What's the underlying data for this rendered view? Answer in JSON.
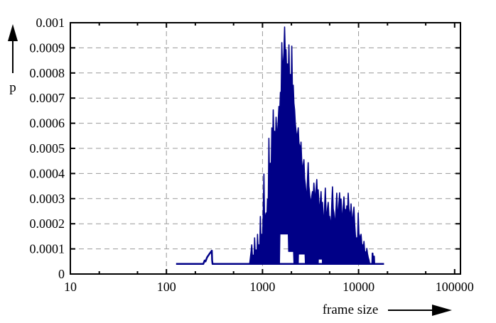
{
  "figure": {
    "background": "#ffffff",
    "border_color": "#000000",
    "grid_color": "#999999"
  },
  "chart_data": {
    "type": "line",
    "title": "",
    "xlabel": "frame size",
    "ylabel": "p",
    "x_scale": "log",
    "xlim": [
      10,
      115000
    ],
    "ylim": [
      0,
      0.001
    ],
    "x_major_ticks": [
      10,
      100,
      1000,
      10000,
      100000
    ],
    "x_major_tick_labels": [
      "10",
      "100",
      "1000",
      "10000",
      "100000"
    ],
    "x_minor_ticks": [
      20,
      50,
      200,
      500,
      2000,
      5000,
      20000,
      50000
    ],
    "y_major_ticks": [
      0,
      0.0001,
      0.0002,
      0.0003,
      0.0004,
      0.0005,
      0.0006,
      0.0007,
      0.0008,
      0.0009,
      0.001
    ],
    "y_major_tick_labels": [
      "0",
      "0.0001",
      "0.0002",
      "0.0003",
      "0.0004",
      "0.0005",
      "0.0006",
      "0.0007",
      "0.0008",
      "0.0009",
      "0.001"
    ],
    "grid": {
      "horizontal_at": [
        0.0001,
        0.0002,
        0.0003,
        0.0004,
        0.0005,
        0.0006,
        0.0007,
        0.0008,
        0.0009
      ],
      "vertical_at": [
        100,
        1000,
        10000
      ],
      "style": "dashed"
    },
    "legend": "none",
    "line_color": "#000087",
    "series": {
      "baseline": [
        [
          126,
          4e-05
        ],
        [
          242,
          4e-05
        ],
        [
          250,
          5.4e-05
        ],
        [
          255,
          5e-05
        ],
        [
          265,
          6.6e-05
        ],
        [
          278,
          7.8e-05
        ],
        [
          297,
          9.3e-05
        ],
        [
          299,
          5.5e-05
        ],
        [
          302,
          4e-05
        ],
        [
          735,
          4e-05
        ],
        [
          13060,
          4e-05
        ],
        [
          13900,
          4e-05
        ],
        [
          13990,
          8.2e-05
        ],
        [
          14080,
          4e-05
        ],
        [
          14400,
          4e-05
        ],
        [
          14480,
          7e-05
        ],
        [
          14560,
          4e-05
        ],
        [
          18400,
          4e-05
        ]
      ],
      "mound_top": [
        [
          735,
          4e-05
        ],
        [
          760,
          8.8e-05
        ],
        [
          773,
          0.000116
        ],
        [
          790,
          5e-05
        ],
        [
          800,
          7.5e-05
        ],
        [
          815,
          5e-05
        ],
        [
          828,
          0.000144
        ],
        [
          845,
          6e-05
        ],
        [
          857,
          9.6e-05
        ],
        [
          875,
          7e-05
        ],
        [
          887,
          0.000158
        ],
        [
          905,
          8e-05
        ],
        [
          918,
          0.000116
        ],
        [
          935,
          9e-05
        ],
        [
          950,
          0.000229
        ],
        [
          967,
          0.000124
        ],
        [
          982,
          0.000158
        ],
        [
          1000,
          0.00013
        ],
        [
          1017,
          0.000243
        ],
        [
          1035,
          0.000398
        ],
        [
          1052,
          0.000201
        ],
        [
          1070,
          0.000229
        ],
        [
          1089,
          0.000243
        ],
        [
          1108,
          0.00021
        ],
        [
          1127,
          0.000298
        ],
        [
          1146,
          0.00026
        ],
        [
          1166,
          0.00054
        ],
        [
          1187,
          0.00034
        ],
        [
          1208,
          0.000441
        ],
        [
          1229,
          0.00038
        ],
        [
          1250,
          0.000582
        ],
        [
          1272,
          0.00047
        ],
        [
          1294,
          0.000653
        ],
        [
          1316,
          0.00052
        ],
        [
          1338,
          0.000568
        ],
        [
          1361,
          0.0005
        ],
        [
          1384,
          0.000624
        ],
        [
          1408,
          0.00056
        ],
        [
          1432,
          0.000559
        ],
        [
          1457,
          0.00061
        ],
        [
          1483,
          0.000667
        ],
        [
          1509,
          0.00064
        ],
        [
          1535,
          0.000723
        ],
        [
          1562,
          0.0007
        ],
        [
          1589,
          0.000921
        ],
        [
          1616,
          0.00078
        ],
        [
          1644,
          0.000842
        ],
        [
          1671,
          0.00088
        ],
        [
          1699,
          0.000983
        ],
        [
          1728,
          0.00087
        ],
        [
          1758,
          0.000893
        ],
        [
          1788,
          0.0008
        ],
        [
          1820,
          0.000836
        ],
        [
          1851,
          0.00076
        ],
        [
          1884,
          0.000912
        ],
        [
          1916,
          0.00075
        ],
        [
          1950,
          0.000794
        ],
        [
          1983,
          0.0007
        ],
        [
          2018,
          0.000907
        ],
        [
          2053,
          0.00072
        ],
        [
          2089,
          0.000751
        ],
        [
          2124,
          0.00068
        ],
        [
          2159,
          0.000653
        ],
        [
          2196,
          0.0006
        ],
        [
          2234,
          0.000568
        ],
        [
          2294,
          0.00054
        ],
        [
          2355,
          0.000582
        ],
        [
          2394,
          0.00052
        ],
        [
          2434,
          0.000511
        ],
        [
          2475,
          0.00048
        ],
        [
          2518,
          0.000525
        ],
        [
          2562,
          0.00045
        ],
        [
          2606,
          0.000412
        ],
        [
          2651,
          0.00043
        ],
        [
          2697,
          0.000455
        ],
        [
          2744,
          0.00038
        ],
        [
          2792,
          0.000356
        ],
        [
          2840,
          0.00032
        ],
        [
          2890,
          0.000299
        ],
        [
          2940,
          0.00038
        ],
        [
          2991,
          0.000443
        ],
        [
          3040,
          0.00035
        ],
        [
          3090,
          0.000327
        ],
        [
          3145,
          0.00029
        ],
        [
          3200,
          0.000285
        ],
        [
          3255,
          0.00031
        ],
        [
          3311,
          0.000328
        ],
        [
          3369,
          0.0003
        ],
        [
          3428,
          0.000362
        ],
        [
          3487,
          0.00032
        ],
        [
          3548,
          0.000299
        ],
        [
          3609,
          0.00034
        ],
        [
          3672,
          0.000376
        ],
        [
          3735,
          0.0003
        ],
        [
          3800,
          0.000335
        ],
        [
          3866,
          0.00028
        ],
        [
          3933,
          0.000243
        ],
        [
          4001,
          0.00029
        ],
        [
          4070,
          0.000328
        ],
        [
          4139,
          0.00025
        ],
        [
          4210,
          0.000285
        ],
        [
          4284,
          0.00023
        ],
        [
          4360,
          0.000201
        ],
        [
          4434,
          0.00027
        ],
        [
          4510,
          0.000342
        ],
        [
          4587,
          0.00025
        ],
        [
          4665,
          0.000215
        ],
        [
          4746,
          0.00026
        ],
        [
          4830,
          0.000285
        ],
        [
          4914,
          0.00023
        ],
        [
          5000,
          0.000229
        ],
        [
          5084,
          0.0002
        ],
        [
          5170,
          0.000201
        ],
        [
          5259,
          0.00028
        ],
        [
          5350,
          0.000347
        ],
        [
          5442,
          0.00026
        ],
        [
          5537,
          0.000243
        ],
        [
          5632,
          0.0002
        ],
        [
          5730,
          0.000215
        ],
        [
          5829,
          0.00026
        ],
        [
          5930,
          0.000322
        ],
        [
          6031,
          0.00025
        ],
        [
          6135,
          0.000229
        ],
        [
          6241,
          0.00028
        ],
        [
          6350,
          0.000323
        ],
        [
          6459,
          0.00026
        ],
        [
          6570,
          0.000299
        ],
        [
          6683,
          0.00024
        ],
        [
          6800,
          0.000215
        ],
        [
          6918,
          0.00027
        ],
        [
          7040,
          0.000307
        ],
        [
          7159,
          0.00025
        ],
        [
          7280,
          0.000257
        ],
        [
          7406,
          0.00022
        ],
        [
          7535,
          0.000271
        ],
        [
          7666,
          0.00023
        ],
        [
          7800,
          0.000322
        ],
        [
          7933,
          0.00026
        ],
        [
          8070,
          0.000243
        ],
        [
          8209,
          0.00021
        ],
        [
          8350,
          0.000279
        ],
        [
          8496,
          0.00023
        ],
        [
          8645,
          0.000201
        ],
        [
          8795,
          0.00024
        ],
        [
          8950,
          0.000266
        ],
        [
          9103,
          0.0002
        ],
        [
          9260,
          0.000158
        ],
        [
          9419,
          0.00013
        ],
        [
          9580,
          0.000144
        ],
        [
          9746,
          0.00012
        ],
        [
          9915,
          0.000243
        ],
        [
          10086,
          0.00016
        ],
        [
          10260,
          0.000152
        ],
        [
          10438,
          0.00013
        ],
        [
          10620,
          0.000158
        ],
        [
          10803,
          0.00012
        ],
        [
          10990,
          0.000116
        ],
        [
          11183,
          0.0001
        ],
        [
          11380,
          0.00013
        ],
        [
          11578,
          9e-05
        ],
        [
          11780,
          8.8e-05
        ],
        [
          11983,
          7.5e-05
        ],
        [
          12190,
          0.000102
        ],
        [
          12403,
          8e-05
        ],
        [
          12620,
          6.5e-05
        ],
        [
          12838,
          5.5e-05
        ],
        [
          13060,
          4e-05
        ]
      ],
      "mound_bottom": [
        [
          735,
          4e-05
        ],
        [
          1500,
          4e-05
        ],
        [
          1515,
          0.00016
        ],
        [
          1860,
          0.00016
        ],
        [
          1875,
          9e-05
        ],
        [
          2110,
          9e-05
        ],
        [
          2130,
          4e-05
        ],
        [
          2350,
          4e-05
        ],
        [
          2365,
          8e-05
        ],
        [
          2780,
          8e-05
        ],
        [
          2800,
          4e-05
        ],
        [
          3795,
          4e-05
        ],
        [
          3810,
          6e-05
        ],
        [
          4200,
          6e-05
        ],
        [
          4215,
          4e-05
        ],
        [
          13060,
          4e-05
        ]
      ]
    }
  }
}
